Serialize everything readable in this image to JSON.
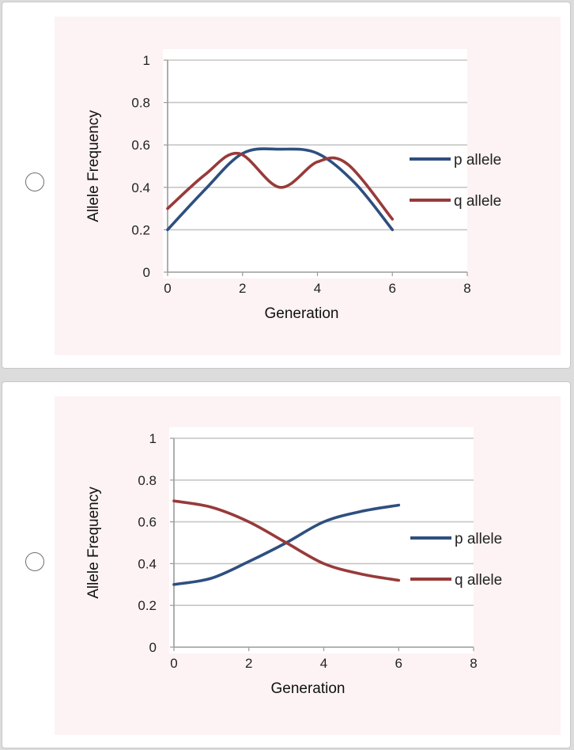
{
  "options": [
    {
      "chart_data": {
        "type": "line",
        "title": "",
        "xlabel": "Generation",
        "ylabel": "Allele Frequency",
        "xlim": [
          0,
          8
        ],
        "ylim": [
          0,
          1
        ],
        "xticks": [
          "0",
          "2",
          "4",
          "6",
          "8"
        ],
        "yticks": [
          "0",
          "0.2",
          "0.4",
          "0.6",
          "0.8",
          "1"
        ],
        "grid": true,
        "legend_position": "right",
        "series": [
          {
            "name": "p allele",
            "color": "#2e4f7f",
            "x": [
              0,
              1,
              2,
              3,
              4,
              5,
              6
            ],
            "y": [
              0.2,
              0.39,
              0.56,
              0.58,
              0.56,
              0.42,
              0.2
            ]
          },
          {
            "name": "q allele",
            "color": "#983a3a",
            "x": [
              0,
              1,
              1.9,
              3,
              4,
              4.8,
              6
            ],
            "y": [
              0.3,
              0.46,
              0.56,
              0.4,
              0.52,
              0.51,
              0.25
            ]
          }
        ]
      }
    },
    {
      "chart_data": {
        "type": "line",
        "title": "",
        "xlabel": "Generation",
        "ylabel": "Allele Frequency",
        "xlim": [
          0,
          8
        ],
        "ylim": [
          0,
          1
        ],
        "xticks": [
          "0",
          "2",
          "4",
          "6",
          "8"
        ],
        "yticks": [
          "0",
          "0.2",
          "0.4",
          "0.6",
          "0.8",
          "1"
        ],
        "grid": true,
        "legend_position": "right",
        "series": [
          {
            "name": "p allele",
            "color": "#2e4f7f",
            "x": [
              0,
              1,
              2,
              3,
              4,
              5,
              6
            ],
            "y": [
              0.3,
              0.33,
              0.41,
              0.5,
              0.6,
              0.65,
              0.68
            ]
          },
          {
            "name": "q allele",
            "color": "#983a3a",
            "x": [
              0,
              1,
              2,
              3,
              4,
              5,
              6
            ],
            "y": [
              0.7,
              0.67,
              0.6,
              0.5,
              0.4,
              0.35,
              0.32
            ]
          }
        ]
      }
    }
  ]
}
